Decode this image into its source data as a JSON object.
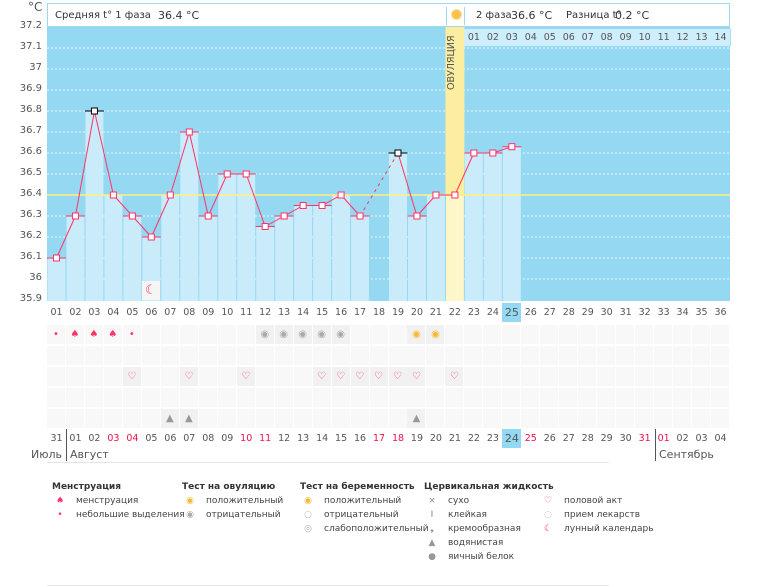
{
  "unit": "°C",
  "header": {
    "phase1_label": "Средняя t° 1 фаза",
    "phase1_value": "36.4 °C",
    "phase2_label": "2 фаза",
    "phase2_value": "36.6 °C",
    "diff_label": "Разница t°",
    "diff_value": "0.2 °C"
  },
  "ovulation_label": "ОВУЛЯЦИЯ",
  "colors": {
    "background": "#94d8f2",
    "bar": "#c9ebfa",
    "line": "#ff3366",
    "ovulation": "#fbeea0",
    "coverline": "#fff07a",
    "weekend": "#ee1144"
  },
  "chart_data": {
    "type": "line",
    "ylim": [
      35.9,
      37.2
    ],
    "yticks": [
      "37.2",
      "37.1",
      "37",
      "36.9",
      "36.8",
      "36.7",
      "36.6",
      "36.5",
      "36.4",
      "36.3",
      "36.2",
      "36.1",
      "36",
      "35.9"
    ],
    "cycle_days": [
      "01",
      "02",
      "03",
      "04",
      "05",
      "06",
      "07",
      "08",
      "09",
      "10",
      "11",
      "12",
      "13",
      "14",
      "15",
      "16",
      "17",
      "18",
      "19",
      "20",
      "21",
      "22",
      "23",
      "24",
      "25",
      "26",
      "27",
      "28",
      "29",
      "30",
      "31",
      "32",
      "33",
      "34",
      "35",
      "36"
    ],
    "temperatures": [
      36.1,
      36.3,
      36.8,
      36.4,
      36.3,
      36.2,
      36.4,
      36.7,
      36.3,
      36.5,
      36.5,
      36.25,
      36.3,
      36.35,
      36.35,
      36.4,
      36.3,
      null,
      36.6,
      36.3,
      36.4,
      36.4,
      36.6,
      36.6,
      36.63
    ],
    "marked_black_days": [
      3,
      19
    ],
    "coverline": 36.4,
    "ovulation_day": 22,
    "current_day": 25
  },
  "phase2_days": [
    "01",
    "02",
    "03",
    "04",
    "05",
    "06",
    "07",
    "08",
    "09",
    "10",
    "11",
    "12",
    "13",
    "14"
  ],
  "calendar": {
    "dates": [
      "31",
      "01",
      "02",
      "03",
      "04",
      "05",
      "06",
      "07",
      "08",
      "09",
      "10",
      "11",
      "12",
      "13",
      "14",
      "15",
      "16",
      "17",
      "18",
      "19",
      "20",
      "21",
      "22",
      "23",
      "24",
      "25",
      "26",
      "27",
      "28",
      "29",
      "30",
      "31",
      "01",
      "02",
      "03",
      "04"
    ],
    "weekend_indexes": [
      3,
      4,
      10,
      11,
      17,
      18,
      25,
      31,
      32
    ],
    "today_index": 24,
    "months": [
      {
        "name": "Июль"
      },
      {
        "name": "Август"
      },
      {
        "name": "Сентябрь"
      }
    ]
  },
  "rows": {
    "menstruation": {
      "1": "light",
      "2": "heavy",
      "3": "heavy",
      "4": "heavy",
      "5": "light"
    },
    "ovulation_test": {
      "12": "negative",
      "13": "negative",
      "14": "negative",
      "15": "negative",
      "16": "negative",
      "20": "positive",
      "21": "positive"
    },
    "intercourse": [
      5,
      8,
      11,
      15,
      16,
      17,
      18,
      19,
      20,
      22
    ],
    "cervical_watery": [
      7,
      8,
      20
    ],
    "moon": [
      6
    ]
  },
  "legend": [
    {
      "title": "Менструация",
      "items": [
        {
          "icon": "menstruation-icon",
          "label": "менструация"
        },
        {
          "icon": "spotting-icon",
          "label": "небольшие выделения"
        }
      ]
    },
    {
      "title": "Тест на овуляцию",
      "items": [
        {
          "icon": "ovulation-positive-icon",
          "label": "положительный"
        },
        {
          "icon": "ovulation-negative-icon",
          "label": "отрицательный"
        }
      ]
    },
    {
      "title": "Тест на беременность",
      "items": [
        {
          "icon": "pregnancy-positive-icon",
          "label": "положительный"
        },
        {
          "icon": "pregnancy-negative-icon",
          "label": "отрицательный"
        },
        {
          "icon": "pregnancy-weak-icon",
          "label": "слабоположительный"
        }
      ]
    },
    {
      "title": "Цервикальная жидкость",
      "items": [
        {
          "icon": "dry-icon",
          "label": "сухо"
        },
        {
          "icon": "sticky-icon",
          "label": "клейкая"
        },
        {
          "icon": "creamy-icon",
          "label": "кремообразная"
        },
        {
          "icon": "watery-icon",
          "label": "водянистая"
        },
        {
          "icon": "egg-white-icon",
          "label": "яичный белок"
        }
      ]
    },
    {
      "title": "",
      "items": [
        {
          "icon": "heart-icon",
          "label": "половой акт"
        },
        {
          "icon": "pill-icon",
          "label": "прием лекарств"
        },
        {
          "icon": "moon-icon",
          "label": "лунный календарь"
        }
      ]
    }
  ]
}
